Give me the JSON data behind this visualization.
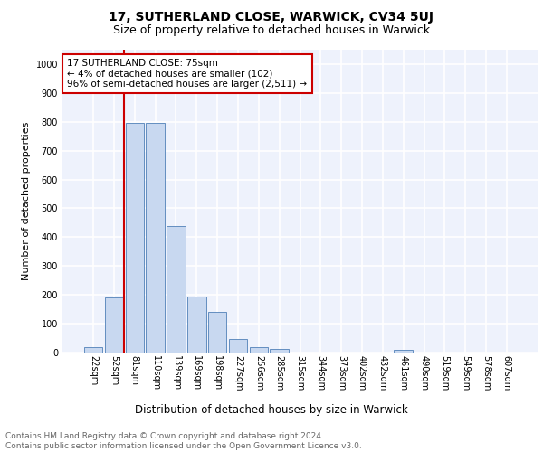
{
  "title": "17, SUTHERLAND CLOSE, WARWICK, CV34 5UJ",
  "subtitle": "Size of property relative to detached houses in Warwick",
  "xlabel": "Distribution of detached houses by size in Warwick",
  "ylabel": "Number of detached properties",
  "categories": [
    "22sqm",
    "52sqm",
    "81sqm",
    "110sqm",
    "139sqm",
    "169sqm",
    "198sqm",
    "227sqm",
    "256sqm",
    "285sqm",
    "315sqm",
    "344sqm",
    "373sqm",
    "402sqm",
    "432sqm",
    "461sqm",
    "490sqm",
    "519sqm",
    "549sqm",
    "578sqm",
    "607sqm"
  ],
  "values": [
    20,
    190,
    795,
    795,
    440,
    195,
    142,
    47,
    18,
    12,
    0,
    0,
    0,
    0,
    0,
    10,
    0,
    0,
    0,
    0,
    0
  ],
  "bar_color": "#c8d8f0",
  "bar_edge_color": "#5080b8",
  "vline_color": "#cc0000",
  "vline_x_index": 1.5,
  "annotation_text": "17 SUTHERLAND CLOSE: 75sqm\n← 4% of detached houses are smaller (102)\n96% of semi-detached houses are larger (2,511) →",
  "annotation_box_color": "#ffffff",
  "annotation_box_edge_color": "#cc0000",
  "ylim": [
    0,
    1050
  ],
  "yticks": [
    0,
    100,
    200,
    300,
    400,
    500,
    600,
    700,
    800,
    900,
    1000
  ],
  "background_color": "#eef2fc",
  "grid_color": "#ffffff",
  "footer_text": "Contains HM Land Registry data © Crown copyright and database right 2024.\nContains public sector information licensed under the Open Government Licence v3.0.",
  "title_fontsize": 10,
  "subtitle_fontsize": 9,
  "xlabel_fontsize": 8.5,
  "ylabel_fontsize": 8,
  "tick_fontsize": 7,
  "annotation_fontsize": 7.5,
  "footer_fontsize": 6.5
}
